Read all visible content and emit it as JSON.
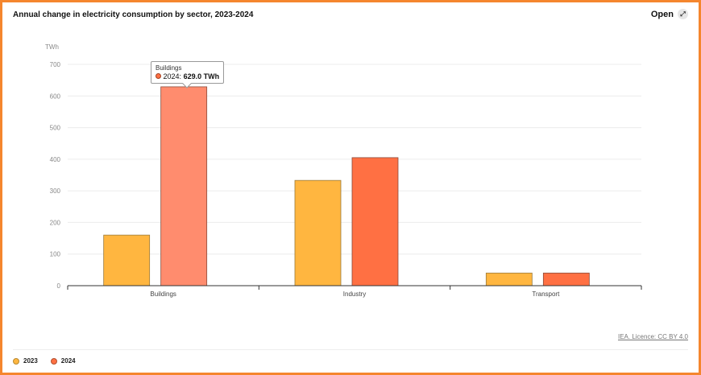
{
  "header": {
    "title": "Annual change in electricity consumption by sector, 2023-2024",
    "open_label": "Open",
    "open_icon": "expand-icon"
  },
  "tooltip": {
    "category": "Buildings",
    "series": "2024",
    "value": "629.0 TWh",
    "color": "#ff8c6e"
  },
  "footer": {
    "credit": "IEA. Licence: CC BY 4.0"
  },
  "legend": [
    {
      "label": "2023",
      "color": "#ffb640"
    },
    {
      "label": "2024",
      "color": "#ff7043"
    }
  ],
  "chart_data": {
    "type": "bar",
    "title": "Annual change in electricity consumption by sector, 2023-2024",
    "xlabel": "",
    "ylabel": "TWh",
    "categories": [
      "Buildings",
      "Industry",
      "Transport"
    ],
    "series": [
      {
        "name": "2023",
        "values": [
          160,
          333,
          40
        ],
        "color": "#ffb640"
      },
      {
        "name": "2024",
        "values": [
          629,
          405,
          40
        ],
        "color": "#ff7043"
      }
    ],
    "yticks": [
      0,
      100,
      200,
      300,
      400,
      500,
      600,
      700
    ],
    "ylim": [
      0,
      700
    ],
    "grid": true,
    "legend_position": "bottom-left",
    "highlighted": {
      "category": "Buildings",
      "series": "2024",
      "color": "#ff8c6e"
    }
  }
}
